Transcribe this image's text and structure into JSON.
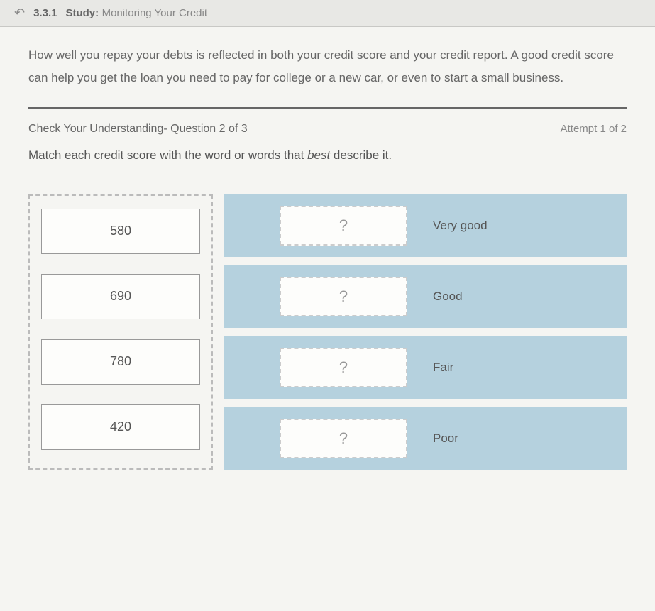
{
  "header": {
    "section_number": "3.3.1",
    "study_label": "Study:",
    "study_title": "Monitoring Your Credit"
  },
  "intro": "How well you repay your debts is reflected in both your credit score and your credit report. A good credit score can help you get the loan you need to pay for college or a new car, or even to start a small business.",
  "question": {
    "label": "Check Your Understanding- Question 2 of 3",
    "attempt": "Attempt 1 of 2",
    "prompt_before": "Match each credit score with the word or words that ",
    "prompt_italic": "best",
    "prompt_after": " describe it."
  },
  "drag_items": [
    "580",
    "690",
    "780",
    "420"
  ],
  "drop_targets": [
    {
      "placeholder": "?",
      "label": "Very good"
    },
    {
      "placeholder": "?",
      "label": "Good"
    },
    {
      "placeholder": "?",
      "label": "Fair"
    },
    {
      "placeholder": "?",
      "label": "Poor"
    }
  ],
  "colors": {
    "drop_row_bg": "#b5d1de",
    "page_bg": "#f5f5f2",
    "border_dash": "#bbb"
  }
}
